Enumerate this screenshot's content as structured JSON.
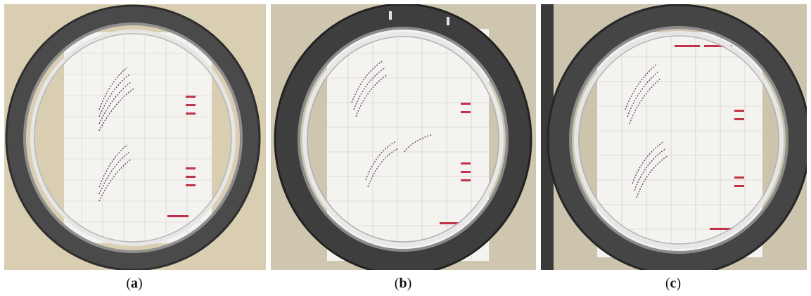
{
  "figure": {
    "panels": [
      {
        "id": "a",
        "caption_open": "(",
        "caption_letter": "a",
        "caption_close": ")",
        "background": "#d9cdb2",
        "ring_color": "#4a4a4a"
      },
      {
        "id": "b",
        "caption_open": "(",
        "caption_letter": "b",
        "caption_close": ")",
        "background": "#cfc6b0",
        "ring_color": "#3e3e3e"
      },
      {
        "id": "c",
        "caption_open": "(",
        "caption_letter": "c",
        "caption_close": ")",
        "background": "#cdc4ae",
        "ring_color": "#454545"
      }
    ],
    "colors": {
      "paper": "#f4f3ef",
      "grid": "#c9c7c2",
      "plot_marks": "#5a4b6e",
      "ink_red": "#c2334a"
    }
  }
}
